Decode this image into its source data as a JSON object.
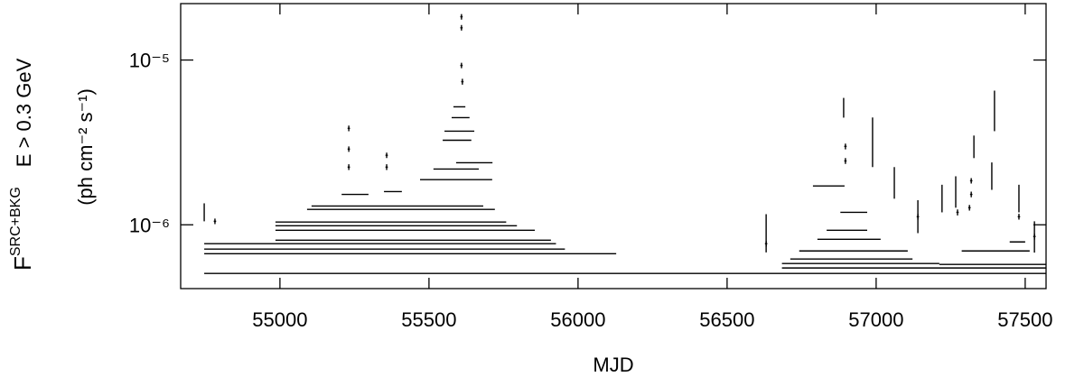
{
  "chart_data": {
    "type": "errorbar",
    "xlabel": "MJD",
    "ylabel": [
      "F",
      "SRC+BKG",
      "E > 0.3 GeV"
    ],
    "yunit": "(ph cm⁻² s⁻¹)",
    "yscale": "log",
    "color": "#000000",
    "xlim": [
      54667,
      57570
    ],
    "ylim": [
      4.1e-07,
      2.2e-05
    ],
    "xticks": [
      55000,
      55500,
      56000,
      56500,
      57000,
      57500
    ],
    "yticks": [
      {
        "value": 1e-06,
        "label": "10⁻⁶"
      },
      {
        "value": 1e-05,
        "label": "10⁻⁵"
      }
    ],
    "series": [
      {
        "x": [
          56158,
          55437,
          55351,
          55336,
          55447,
          55420,
          55390,
          55372,
          55406,
          55394,
          55252,
          55379,
          55591,
          55591,
          55652,
          55594,
          55602,
          55606,
          55602,
          57127,
          56948,
          56917,
          56924,
          56909,
          56902,
          56925,
          57391,
          57401,
          56841,
          57474,
          54746,
          56631,
          56891,
          56988,
          57061,
          57140,
          57328,
          57388,
          57397,
          57479,
          57221,
          57267,
          57531,
          55609,
          55609,
          55609,
          55612,
          55231,
          55231,
          55231,
          55358,
          55358,
          54782,
          56631,
          56897,
          56897,
          57319,
          57319,
          57313,
          57479,
          57273,
          57140,
          57531
        ],
        "xerr": [
          1412,
          691,
          605,
          590,
          462,
          435,
          405,
          387,
          315,
          288,
          45,
          30,
          121,
          76,
          61,
          48,
          50,
          30,
          20,
          443,
          264,
          205,
          182,
          106,
          68,
          45,
          179,
          114,
          53,
          26,
          0,
          0,
          0,
          0,
          0,
          0,
          0,
          0,
          0,
          0,
          0,
          0,
          0,
          4,
          4,
          4,
          4,
          4,
          4,
          4,
          4,
          4,
          4,
          4,
          4,
          4,
          4,
          4,
          4,
          4,
          4,
          4,
          4
        ],
        "y": [
          5.07e-07,
          6.68e-07,
          7.12e-07,
          7.68e-07,
          8.07e-07,
          9.27e-07,
          9.87e-07,
          1.04e-06,
          1.24e-06,
          1.3e-06,
          1.53e-06,
          1.59e-06,
          1.88e-06,
          2.18e-06,
          2.38e-06,
          3.26e-06,
          3.7e-06,
          4.47e-06,
          5.2e-06,
          5.47e-07,
          5.82e-07,
          6.2e-07,
          6.94e-07,
          8.17e-07,
          9.27e-07,
          1.19e-06,
          5.75e-07,
          6.94e-07,
          1.72e-06,
          7.87e-07,
          1.2e-06,
          9.2e-07,
          5.18e-06,
          3.36e-06,
          1.84e-06,
          1.15e-06,
          3.01e-06,
          2.01e-06,
          5.11e-06,
          1.47e-06,
          1.47e-06,
          1.62e-06,
          8.64e-07,
          1.83e-05,
          1.57e-05,
          9.27e-06,
          7.39e-06,
          3.85e-06,
          2.88e-06,
          2.24e-06,
          2.64e-06,
          2.24e-06,
          1.05e-06,
          7.68e-07,
          2.99e-06,
          2.44e-06,
          1.85e-06,
          1.53e-06,
          1.27e-06,
          1.12e-06,
          1.19e-06,
          1.12e-06,
          8.49e-07
        ],
        "yerr": [
          0,
          0,
          0,
          0,
          0,
          0,
          0,
          0,
          0,
          0,
          0,
          0,
          0,
          0,
          0,
          0,
          0,
          0,
          0,
          0,
          0,
          0,
          0,
          0,
          0,
          0,
          0,
          0,
          0,
          0,
          1.5e-07,
          2.4e-07,
          7.1e-07,
          1.12e-06,
          4e-07,
          2.6e-07,
          4.7e-07,
          3.8e-07,
          1.41e-06,
          2.8e-07,
          2.8e-07,
          3.5e-07,
          1.86e-07,
          7e-07,
          6e-07,
          3.5e-07,
          3e-07,
          1.5e-07,
          1.1e-07,
          9e-08,
          1e-07,
          9e-08,
          4e-08,
          3e-08,
          1.2e-07,
          1e-07,
          7e-08,
          6e-08,
          5e-08,
          4.5e-08,
          5e-08,
          4.5e-08,
          3.5e-08
        ]
      }
    ]
  }
}
